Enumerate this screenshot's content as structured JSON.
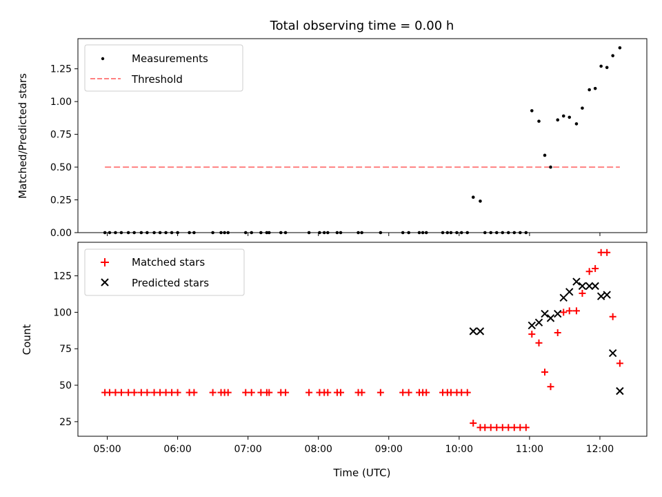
{
  "chart_data": [
    {
      "type": "scatter",
      "title": "Total observing time = 0.00 h",
      "xlabel": "",
      "ylabel": "Matched/Predicted stars",
      "xlim": [
        "04:35",
        "12:40"
      ],
      "ylim": [
        0,
        1.48
      ],
      "yticks": [
        "0.00",
        "0.25",
        "0.50",
        "0.75",
        "1.00",
        "1.25"
      ],
      "legend_position": "upper-left",
      "legend": [
        "Measurements",
        "Threshold"
      ],
      "series": [
        {
          "name": "Measurements",
          "marker": "dot",
          "color": "#000000",
          "points": [
            [
              "04:58",
              0
            ],
            [
              "05:02",
              0
            ],
            [
              "05:07",
              0
            ],
            [
              "05:12",
              0
            ],
            [
              "05:18",
              0
            ],
            [
              "05:23",
              0
            ],
            [
              "05:29",
              0
            ],
            [
              "05:34",
              0
            ],
            [
              "05:40",
              0
            ],
            [
              "05:45",
              0
            ],
            [
              "05:50",
              0
            ],
            [
              "05:55",
              0
            ],
            [
              "06:00",
              0
            ],
            [
              "06:10",
              0
            ],
            [
              "06:14",
              0
            ],
            [
              "06:30",
              0
            ],
            [
              "06:37",
              0
            ],
            [
              "06:40",
              0
            ],
            [
              "06:43",
              0
            ],
            [
              "06:58",
              0
            ],
            [
              "07:03",
              0
            ],
            [
              "07:11",
              0
            ],
            [
              "07:16",
              0
            ],
            [
              "07:18",
              0
            ],
            [
              "07:28",
              0
            ],
            [
              "07:32",
              0
            ],
            [
              "07:52",
              0
            ],
            [
              "08:01",
              0
            ],
            [
              "08:05",
              0
            ],
            [
              "08:08",
              0
            ],
            [
              "08:16",
              0
            ],
            [
              "08:19",
              0
            ],
            [
              "08:34",
              0
            ],
            [
              "08:37",
              0
            ],
            [
              "08:53",
              0
            ],
            [
              "09:12",
              0
            ],
            [
              "09:17",
              0
            ],
            [
              "09:26",
              0
            ],
            [
              "09:29",
              0
            ],
            [
              "09:32",
              0
            ],
            [
              "09:46",
              0
            ],
            [
              "09:50",
              0
            ],
            [
              "09:53",
              0
            ],
            [
              "09:58",
              0
            ],
            [
              "10:02",
              0
            ],
            [
              "10:07",
              0
            ],
            [
              "10:12",
              0.27
            ],
            [
              "10:18",
              0.24
            ],
            [
              "10:22",
              0
            ],
            [
              "10:27",
              0
            ],
            [
              "10:32",
              0
            ],
            [
              "10:37",
              0
            ],
            [
              "10:42",
              0
            ],
            [
              "10:47",
              0
            ],
            [
              "10:52",
              0
            ],
            [
              "10:57",
              0
            ],
            [
              "11:02",
              0.93
            ],
            [
              "11:08",
              0.85
            ],
            [
              "11:13",
              0.59
            ],
            [
              "11:18",
              0.5
            ],
            [
              "11:24",
              0.86
            ],
            [
              "11:29",
              0.89
            ],
            [
              "11:34",
              0.88
            ],
            [
              "11:40",
              0.83
            ],
            [
              "11:45",
              0.95
            ],
            [
              "11:51",
              1.09
            ],
            [
              "11:56",
              1.1
            ],
            [
              "12:01",
              1.27
            ],
            [
              "12:06",
              1.26
            ],
            [
              "12:11",
              1.35
            ],
            [
              "12:17",
              1.41
            ]
          ]
        },
        {
          "name": "Threshold",
          "style": "dashed",
          "color": "#ff8080",
          "points": [
            [
              "04:58",
              0.5
            ],
            [
              "12:17",
              0.5
            ]
          ]
        }
      ]
    },
    {
      "type": "scatter",
      "title": "",
      "xlabel": "Time (UTC)",
      "ylabel": "Count",
      "xlim": [
        "04:35",
        "12:40"
      ],
      "ylim": [
        15,
        148
      ],
      "yticks": [
        "25",
        "50",
        "75",
        "100",
        "125"
      ],
      "xticks": [
        "05:00",
        "06:00",
        "07:00",
        "08:00",
        "09:00",
        "10:00",
        "11:00",
        "12:00"
      ],
      "legend_position": "upper-left",
      "legend": [
        "Matched stars",
        "Predicted stars"
      ],
      "series": [
        {
          "name": "Matched stars",
          "marker": "plus",
          "color": "#ff0000",
          "points": [
            [
              "04:58",
              45
            ],
            [
              "05:02",
              45
            ],
            [
              "05:07",
              45
            ],
            [
              "05:12",
              45
            ],
            [
              "05:18",
              45
            ],
            [
              "05:23",
              45
            ],
            [
              "05:29",
              45
            ],
            [
              "05:34",
              45
            ],
            [
              "05:40",
              45
            ],
            [
              "05:45",
              45
            ],
            [
              "05:50",
              45
            ],
            [
              "05:55",
              45
            ],
            [
              "06:00",
              45
            ],
            [
              "06:10",
              45
            ],
            [
              "06:14",
              45
            ],
            [
              "06:30",
              45
            ],
            [
              "06:37",
              45
            ],
            [
              "06:40",
              45
            ],
            [
              "06:43",
              45
            ],
            [
              "06:58",
              45
            ],
            [
              "07:03",
              45
            ],
            [
              "07:11",
              45
            ],
            [
              "07:16",
              45
            ],
            [
              "07:18",
              45
            ],
            [
              "07:28",
              45
            ],
            [
              "07:32",
              45
            ],
            [
              "07:52",
              45
            ],
            [
              "08:01",
              45
            ],
            [
              "08:05",
              45
            ],
            [
              "08:08",
              45
            ],
            [
              "08:16",
              45
            ],
            [
              "08:19",
              45
            ],
            [
              "08:34",
              45
            ],
            [
              "08:37",
              45
            ],
            [
              "08:53",
              45
            ],
            [
              "09:12",
              45
            ],
            [
              "09:17",
              45
            ],
            [
              "09:26",
              45
            ],
            [
              "09:29",
              45
            ],
            [
              "09:32",
              45
            ],
            [
              "09:46",
              45
            ],
            [
              "09:50",
              45
            ],
            [
              "09:53",
              45
            ],
            [
              "09:58",
              45
            ],
            [
              "10:02",
              45
            ],
            [
              "10:07",
              45
            ],
            [
              "10:12",
              24
            ],
            [
              "10:18",
              21
            ],
            [
              "10:22",
              21
            ],
            [
              "10:27",
              21
            ],
            [
              "10:32",
              21
            ],
            [
              "10:37",
              21
            ],
            [
              "10:42",
              21
            ],
            [
              "10:47",
              21
            ],
            [
              "10:52",
              21
            ],
            [
              "10:57",
              21
            ],
            [
              "11:02",
              85
            ],
            [
              "11:08",
              79
            ],
            [
              "11:13",
              59
            ],
            [
              "11:18",
              49
            ],
            [
              "11:24",
              86
            ],
            [
              "11:29",
              100
            ],
            [
              "11:34",
              101
            ],
            [
              "11:40",
              101
            ],
            [
              "11:45",
              113
            ],
            [
              "11:51",
              128
            ],
            [
              "11:56",
              130
            ],
            [
              "12:01",
              141
            ],
            [
              "12:06",
              141
            ],
            [
              "12:11",
              97
            ],
            [
              "12:17",
              65
            ]
          ]
        },
        {
          "name": "Predicted stars",
          "marker": "x",
          "color": "#000000",
          "points": [
            [
              "10:12",
              87
            ],
            [
              "10:18",
              87
            ],
            [
              "11:02",
              91
            ],
            [
              "11:08",
              93
            ],
            [
              "11:13",
              99
            ],
            [
              "11:18",
              96
            ],
            [
              "11:24",
              99
            ],
            [
              "11:29",
              110
            ],
            [
              "11:34",
              114
            ],
            [
              "11:40",
              121
            ],
            [
              "11:45",
              118
            ],
            [
              "11:51",
              118
            ],
            [
              "11:56",
              118
            ],
            [
              "12:01",
              111
            ],
            [
              "12:06",
              112
            ],
            [
              "12:11",
              72
            ],
            [
              "12:17",
              46
            ]
          ]
        }
      ]
    }
  ]
}
